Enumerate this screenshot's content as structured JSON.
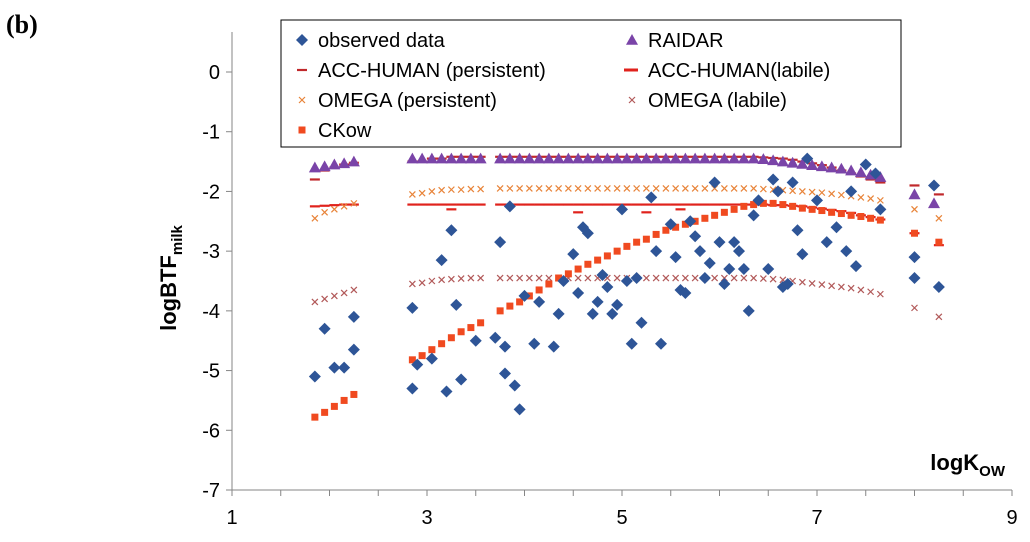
{
  "panel_label": "(b)",
  "chart_data": {
    "type": "scatter",
    "xlabel": {
      "main": "logK",
      "sub": "OW"
    },
    "ylabel": {
      "main": "logBTF",
      "sub": "milk"
    },
    "xlim": [
      1,
      9
    ],
    "ylim": [
      -7,
      0.5
    ],
    "xticks": [
      1,
      3,
      5,
      7,
      9
    ],
    "yticks": [
      0,
      -1,
      -2,
      -3,
      -4,
      -5,
      -6,
      -7
    ],
    "grid": false,
    "legend_position": "top",
    "colors": {
      "observed": "#2e5597",
      "raidar": "#7a44a8",
      "acc_persistent": "#c0282b",
      "acc_labile": "#e0221c",
      "omega_persistent": "#e8843a",
      "omega_labile": "#b25a5a",
      "ckow": "#f04a20"
    },
    "series": [
      {
        "key": "observed",
        "name": "observed data",
        "marker": "diamond",
        "x": [
          1.85,
          1.95,
          2.05,
          2.15,
          2.25,
          2.25,
          2.85,
          2.85,
          2.9,
          3.05,
          3.15,
          3.2,
          3.25,
          3.3,
          3.35,
          3.5,
          3.7,
          3.75,
          3.8,
          3.8,
          3.85,
          3.9,
          3.95,
          4.0,
          4.1,
          4.15,
          4.3,
          4.35,
          4.4,
          4.5,
          4.55,
          4.6,
          4.65,
          4.7,
          4.75,
          4.8,
          4.85,
          4.9,
          4.95,
          5.0,
          5.05,
          5.1,
          5.15,
          5.2,
          5.3,
          5.35,
          5.4,
          5.5,
          5.55,
          5.6,
          5.65,
          5.7,
          5.75,
          5.8,
          5.85,
          5.9,
          5.95,
          6.0,
          6.05,
          6.1,
          6.15,
          6.2,
          6.25,
          6.3,
          6.35,
          6.4,
          6.5,
          6.55,
          6.6,
          6.65,
          6.7,
          6.75,
          6.8,
          6.85,
          6.9,
          7.0,
          7.1,
          7.2,
          7.3,
          7.35,
          7.4,
          7.5,
          7.6,
          7.65,
          8.0,
          8.0,
          8.2,
          8.25
        ],
        "y": [
          -5.1,
          -4.3,
          -4.95,
          -4.95,
          -4.1,
          -4.65,
          -5.3,
          -3.95,
          -4.9,
          -4.8,
          -3.15,
          -5.35,
          -2.65,
          -3.9,
          -5.15,
          -4.5,
          -4.45,
          -2.85,
          -4.6,
          -5.05,
          -2.25,
          -5.25,
          -5.65,
          -3.75,
          -4.55,
          -3.85,
          -4.6,
          -4.05,
          -3.5,
          -3.05,
          -3.7,
          -2.6,
          -2.7,
          -4.05,
          -3.85,
          -3.4,
          -3.6,
          -4.05,
          -3.9,
          -2.3,
          -3.5,
          -4.55,
          -3.45,
          -4.2,
          -2.1,
          -3.0,
          -4.55,
          -2.55,
          -3.1,
          -3.65,
          -3.7,
          -2.5,
          -2.75,
          -3.0,
          -3.45,
          -3.2,
          -1.85,
          -2.85,
          -3.55,
          -3.3,
          -2.85,
          -3.0,
          -3.3,
          -4.0,
          -2.4,
          -2.15,
          -3.3,
          -1.8,
          -2.0,
          -3.6,
          -3.55,
          -1.85,
          -2.65,
          -3.05,
          -1.45,
          -2.15,
          -2.85,
          -2.6,
          -3.0,
          -2.0,
          -3.25,
          -1.55,
          -1.7,
          -2.3,
          -3.1,
          -3.45,
          -1.9,
          -3.6
        ]
      },
      {
        "key": "raidar",
        "name": "RAIDAR",
        "marker": "triangle",
        "x": [
          1.85,
          1.95,
          2.05,
          2.15,
          2.25,
          2.85,
          2.95,
          3.05,
          3.15,
          3.25,
          3.35,
          3.45,
          3.55,
          3.75,
          3.85,
          3.95,
          4.05,
          4.15,
          4.25,
          4.35,
          4.45,
          4.55,
          4.65,
          4.75,
          4.85,
          4.95,
          5.05,
          5.15,
          5.25,
          5.35,
          5.45,
          5.55,
          5.65,
          5.75,
          5.85,
          5.95,
          6.05,
          6.15,
          6.25,
          6.35,
          6.45,
          6.55,
          6.65,
          6.75,
          6.85,
          6.95,
          7.05,
          7.15,
          7.25,
          7.35,
          7.45,
          7.55,
          7.65,
          8.0,
          8.2
        ],
        "y": [
          -1.6,
          -1.58,
          -1.55,
          -1.53,
          -1.5,
          -1.45,
          -1.45,
          -1.45,
          -1.45,
          -1.45,
          -1.45,
          -1.45,
          -1.45,
          -1.45,
          -1.45,
          -1.45,
          -1.45,
          -1.45,
          -1.45,
          -1.45,
          -1.45,
          -1.45,
          -1.45,
          -1.45,
          -1.45,
          -1.45,
          -1.45,
          -1.45,
          -1.45,
          -1.45,
          -1.45,
          -1.45,
          -1.45,
          -1.45,
          -1.45,
          -1.45,
          -1.45,
          -1.45,
          -1.45,
          -1.45,
          -1.46,
          -1.48,
          -1.5,
          -1.52,
          -1.54,
          -1.56,
          -1.58,
          -1.6,
          -1.62,
          -1.65,
          -1.68,
          -1.72,
          -1.76,
          -2.05,
          -2.2
        ]
      },
      {
        "key": "acc_persistent",
        "name": "ACC-HUMAN (persistent)",
        "marker": "dash",
        "x": [
          1.85,
          1.95,
          2.05,
          2.15,
          2.25,
          2.85,
          2.95,
          3.05,
          3.15,
          3.25,
          3.35,
          3.45,
          3.55,
          3.75,
          3.85,
          3.95,
          4.05,
          4.15,
          4.25,
          4.35,
          4.45,
          4.55,
          4.65,
          4.75,
          4.85,
          4.95,
          5.05,
          5.15,
          5.25,
          5.35,
          5.45,
          5.55,
          5.65,
          5.75,
          5.85,
          5.95,
          6.05,
          6.15,
          6.25,
          6.35,
          6.45,
          6.55,
          6.65,
          6.75,
          6.85,
          6.95,
          7.05,
          7.15,
          7.25,
          7.35,
          7.45,
          7.55,
          7.65,
          8.0,
          8.25
        ],
        "y": [
          -1.8,
          -1.65,
          -1.6,
          -1.55,
          -1.52,
          -1.5,
          -1.5,
          -1.45,
          -1.45,
          -1.42,
          -1.42,
          -1.42,
          -1.42,
          -1.42,
          -1.42,
          -1.42,
          -1.42,
          -1.42,
          -1.42,
          -1.42,
          -1.42,
          -1.42,
          -1.42,
          -1.42,
          -1.42,
          -1.42,
          -1.42,
          -1.42,
          -1.42,
          -1.42,
          -1.42,
          -1.42,
          -1.42,
          -1.42,
          -1.42,
          -1.42,
          -1.42,
          -1.42,
          -1.42,
          -1.42,
          -1.43,
          -1.44,
          -1.45,
          -1.47,
          -1.5,
          -1.53,
          -1.56,
          -1.6,
          -1.65,
          -1.7,
          -1.75,
          -1.8,
          -1.85,
          -1.9,
          -2.05
        ]
      },
      {
        "key": "acc_labile",
        "name": "ACC-HUMAN(labile)",
        "marker": "dash",
        "x": [
          1.85,
          1.95,
          2.05,
          2.15,
          2.25,
          2.85,
          2.95,
          3.05,
          3.15,
          3.25,
          3.35,
          3.45,
          3.55,
          3.75,
          3.85,
          3.95,
          4.05,
          4.15,
          4.25,
          4.35,
          4.45,
          4.55,
          4.65,
          4.75,
          4.85,
          4.95,
          5.05,
          5.15,
          5.25,
          5.35,
          5.45,
          5.55,
          5.65,
          5.75,
          5.85,
          5.95,
          6.05,
          6.15,
          6.25,
          6.35,
          6.45,
          6.55,
          6.65,
          6.75,
          6.85,
          6.95,
          7.05,
          7.15,
          7.25,
          7.35,
          7.45,
          7.55,
          7.65,
          8.0,
          8.25,
          3.25,
          4.55,
          5.25,
          5.6
        ],
        "y": [
          -2.25,
          -2.24,
          -2.23,
          -2.22,
          -2.22,
          -2.22,
          -2.22,
          -2.22,
          -2.22,
          -2.22,
          -2.22,
          -2.22,
          -2.22,
          -2.22,
          -2.22,
          -2.22,
          -2.22,
          -2.22,
          -2.22,
          -2.22,
          -2.22,
          -2.22,
          -2.22,
          -2.22,
          -2.22,
          -2.22,
          -2.22,
          -2.22,
          -2.22,
          -2.22,
          -2.22,
          -2.22,
          -2.22,
          -2.22,
          -2.22,
          -2.22,
          -2.22,
          -2.22,
          -2.22,
          -2.22,
          -2.22,
          -2.23,
          -2.23,
          -2.24,
          -2.25,
          -2.27,
          -2.29,
          -2.31,
          -2.33,
          -2.36,
          -2.4,
          -2.43,
          -2.47,
          -2.7,
          -2.9,
          -2.3,
          -2.35,
          -2.35,
          -2.3
        ]
      },
      {
        "key": "omega_persistent",
        "name": "OMEGA (persistent)",
        "marker": "x",
        "x": [
          1.85,
          1.95,
          2.05,
          2.15,
          2.25,
          2.85,
          2.95,
          3.05,
          3.15,
          3.25,
          3.35,
          3.45,
          3.55,
          3.75,
          3.85,
          3.95,
          4.05,
          4.15,
          4.25,
          4.35,
          4.45,
          4.55,
          4.65,
          4.75,
          4.85,
          4.95,
          5.05,
          5.15,
          5.25,
          5.35,
          5.45,
          5.55,
          5.65,
          5.75,
          5.85,
          5.95,
          6.05,
          6.15,
          6.25,
          6.35,
          6.45,
          6.55,
          6.65,
          6.75,
          6.85,
          6.95,
          7.05,
          7.15,
          7.25,
          7.35,
          7.45,
          7.55,
          7.65,
          8.0,
          8.25
        ],
        "y": [
          -2.45,
          -2.35,
          -2.3,
          -2.25,
          -2.2,
          -2.05,
          -2.03,
          -2.0,
          -1.98,
          -1.97,
          -1.97,
          -1.96,
          -1.96,
          -1.95,
          -1.95,
          -1.95,
          -1.95,
          -1.95,
          -1.95,
          -1.95,
          -1.95,
          -1.95,
          -1.95,
          -1.95,
          -1.95,
          -1.95,
          -1.95,
          -1.95,
          -1.95,
          -1.95,
          -1.95,
          -1.95,
          -1.95,
          -1.95,
          -1.95,
          -1.95,
          -1.95,
          -1.95,
          -1.95,
          -1.95,
          -1.96,
          -1.97,
          -1.98,
          -1.99,
          -2.0,
          -2.01,
          -2.02,
          -2.04,
          -2.06,
          -2.08,
          -2.1,
          -2.12,
          -2.15,
          -2.3,
          -2.45
        ]
      },
      {
        "key": "omega_labile",
        "name": "OMEGA (labile)",
        "marker": "x",
        "x": [
          1.85,
          1.95,
          2.05,
          2.15,
          2.25,
          2.85,
          2.95,
          3.05,
          3.15,
          3.25,
          3.35,
          3.45,
          3.55,
          3.75,
          3.85,
          3.95,
          4.05,
          4.15,
          4.25,
          4.35,
          4.45,
          4.55,
          4.65,
          4.75,
          4.85,
          4.95,
          5.05,
          5.15,
          5.25,
          5.35,
          5.45,
          5.55,
          5.65,
          5.75,
          5.85,
          5.95,
          6.05,
          6.15,
          6.25,
          6.35,
          6.45,
          6.55,
          6.65,
          6.75,
          6.85,
          6.95,
          7.05,
          7.15,
          7.25,
          7.35,
          7.45,
          7.55,
          7.65,
          8.0,
          8.25
        ],
        "y": [
          -3.85,
          -3.8,
          -3.75,
          -3.7,
          -3.65,
          -3.55,
          -3.53,
          -3.5,
          -3.48,
          -3.47,
          -3.46,
          -3.45,
          -3.45,
          -3.45,
          -3.45,
          -3.45,
          -3.45,
          -3.45,
          -3.45,
          -3.45,
          -3.45,
          -3.45,
          -3.45,
          -3.45,
          -3.45,
          -3.45,
          -3.45,
          -3.45,
          -3.45,
          -3.45,
          -3.45,
          -3.45,
          -3.45,
          -3.45,
          -3.45,
          -3.45,
          -3.45,
          -3.45,
          -3.45,
          -3.45,
          -3.46,
          -3.47,
          -3.48,
          -3.5,
          -3.52,
          -3.54,
          -3.56,
          -3.58,
          -3.6,
          -3.62,
          -3.65,
          -3.68,
          -3.72,
          -3.95,
          -4.1
        ]
      },
      {
        "key": "ckow",
        "name": "CKow",
        "marker": "square",
        "x": [
          1.85,
          1.95,
          2.05,
          2.15,
          2.25,
          2.85,
          2.95,
          3.05,
          3.15,
          3.25,
          3.35,
          3.45,
          3.55,
          3.75,
          3.85,
          3.95,
          4.05,
          4.15,
          4.25,
          4.35,
          4.45,
          4.55,
          4.65,
          4.75,
          4.85,
          4.95,
          5.05,
          5.15,
          5.25,
          5.35,
          5.45,
          5.55,
          5.65,
          5.75,
          5.85,
          5.95,
          6.05,
          6.15,
          6.25,
          6.35,
          6.45,
          6.55,
          6.65,
          6.75,
          6.85,
          6.95,
          7.05,
          7.15,
          7.25,
          7.35,
          7.45,
          7.55,
          7.65,
          8.0,
          8.25
        ],
        "y": [
          -5.78,
          -5.7,
          -5.6,
          -5.5,
          -5.4,
          -4.82,
          -4.75,
          -4.65,
          -4.55,
          -4.45,
          -4.35,
          -4.28,
          -4.2,
          -4.0,
          -3.92,
          -3.85,
          -3.75,
          -3.65,
          -3.55,
          -3.45,
          -3.38,
          -3.3,
          -3.22,
          -3.15,
          -3.08,
          -3.0,
          -2.92,
          -2.85,
          -2.8,
          -2.72,
          -2.65,
          -2.6,
          -2.55,
          -2.5,
          -2.45,
          -2.4,
          -2.35,
          -2.3,
          -2.25,
          -2.22,
          -2.2,
          -2.2,
          -2.22,
          -2.25,
          -2.28,
          -2.3,
          -2.32,
          -2.35,
          -2.37,
          -2.4,
          -2.42,
          -2.45,
          -2.48,
          -2.7,
          -2.85
        ]
      }
    ]
  }
}
